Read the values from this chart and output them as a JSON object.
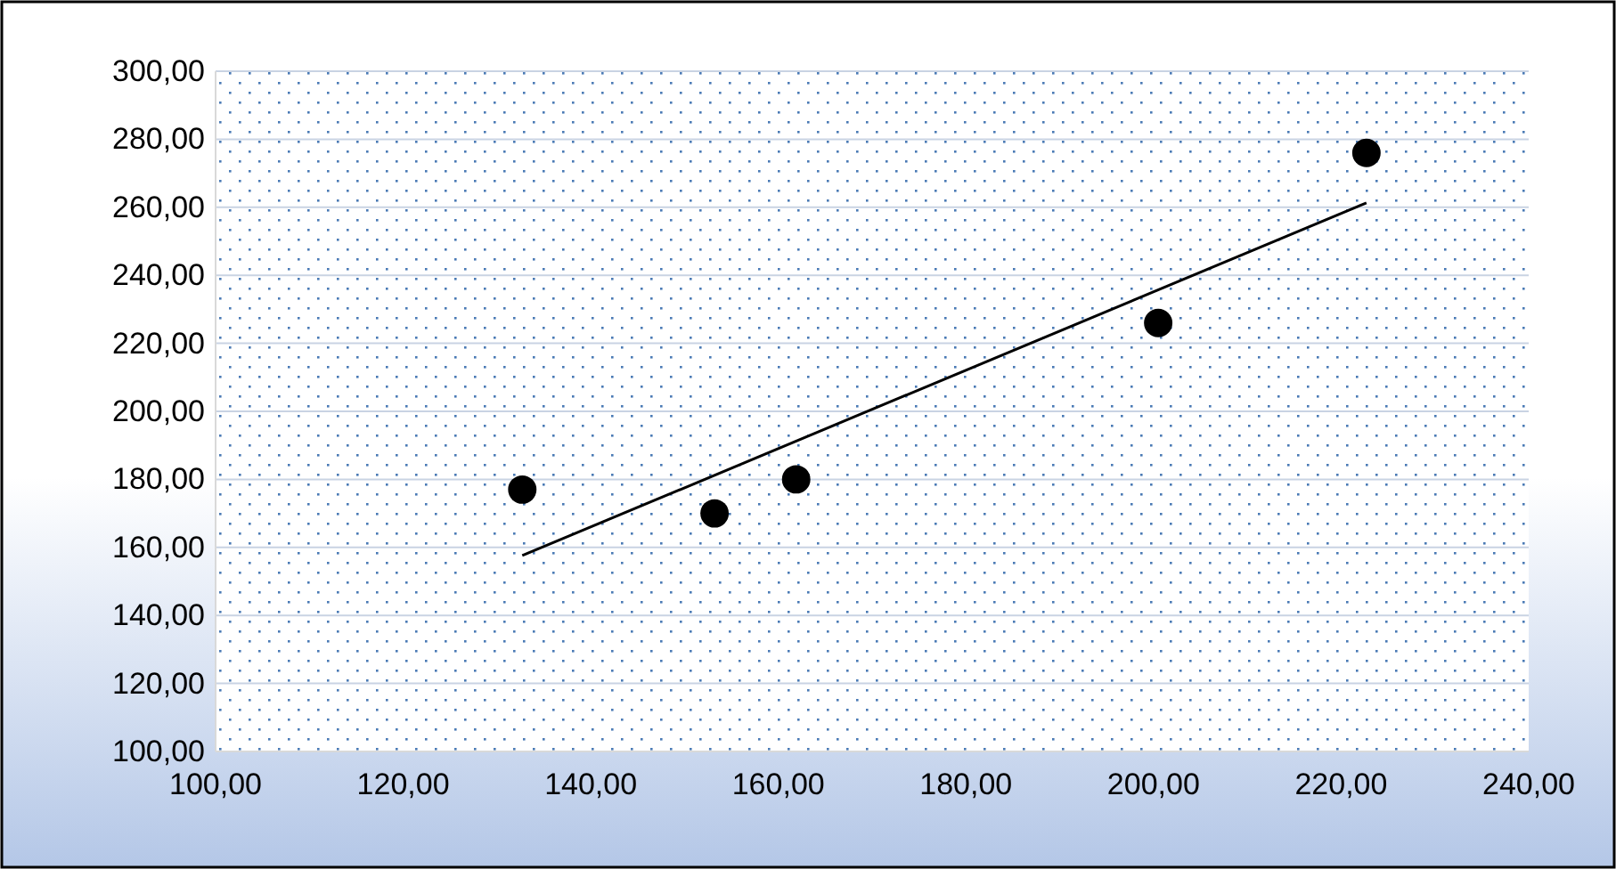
{
  "chart_data": {
    "type": "scatter",
    "marker": "circle",
    "grid": "y",
    "xlim": [
      100,
      240
    ],
    "ylim": [
      100,
      300
    ],
    "xticks": [
      {
        "value": 100,
        "label": "100,00"
      },
      {
        "value": 120,
        "label": "120,00"
      },
      {
        "value": 140,
        "label": "140,00"
      },
      {
        "value": 160,
        "label": "160,00"
      },
      {
        "value": 180,
        "label": "180,00"
      },
      {
        "value": 200,
        "label": "200,00"
      },
      {
        "value": 220,
        "label": "220,00"
      },
      {
        "value": 240,
        "label": "240,00"
      }
    ],
    "yticks": [
      {
        "value": 100,
        "label": "100,00"
      },
      {
        "value": 120,
        "label": "120,00"
      },
      {
        "value": 140,
        "label": "140,00"
      },
      {
        "value": 160,
        "label": "160,00"
      },
      {
        "value": 180,
        "label": "180,00"
      },
      {
        "value": 200,
        "label": "200,00"
      },
      {
        "value": 220,
        "label": "220,00"
      },
      {
        "value": 240,
        "label": "240,00"
      },
      {
        "value": 260,
        "label": "260,00"
      },
      {
        "value": 280,
        "label": "280,00"
      },
      {
        "value": 300,
        "label": "300,00"
      }
    ],
    "series": [
      {
        "color": "#000000",
        "x": [
          132.7,
          153.2,
          161.9,
          200.5,
          222.7
        ],
        "values": [
          177,
          170,
          180,
          226,
          276
        ]
      },
      {
        "type": "line",
        "color": "#000000",
        "marker": "none",
        "line_style": "solid",
        "x": [
          132.7,
          222.7
        ],
        "values": [
          157.6,
          261.3
        ]
      }
    ]
  }
}
